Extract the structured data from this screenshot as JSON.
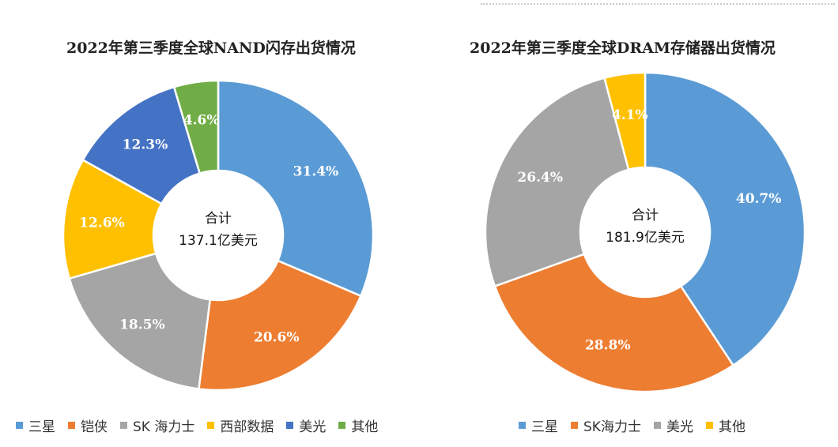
{
  "chart_data": [
    {
      "type": "pie",
      "title": "2022年第三季度全球NAND闪存出货情况",
      "center_label": "合计",
      "center_value": "137.1亿美元",
      "categories": [
        "三星",
        "铠侠",
        "SK 海力士",
        "西部数据",
        "美光",
        "其他"
      ],
      "values": [
        31.4,
        20.6,
        18.5,
        12.6,
        12.3,
        4.6
      ],
      "labels": [
        "31.4%",
        "20.6%",
        "18.5%",
        "12.6%",
        "12.3%",
        "4.6%"
      ],
      "colors": [
        "#5b9bd5",
        "#ed7d31",
        "#a5a5a5",
        "#ffc000",
        "#4472c4",
        "#70ad47"
      ],
      "legend_position": "bottom"
    },
    {
      "type": "pie",
      "title": "2022年第三季度全球DRAM存储器出货情况",
      "center_label": "合计",
      "center_value": "181.9亿美元",
      "categories": [
        "三星",
        "SK海力士",
        "美光",
        "其他"
      ],
      "values": [
        40.7,
        28.8,
        26.4,
        4.1
      ],
      "labels": [
        "40.7%",
        "28.8%",
        "26.4%",
        "4.1%"
      ],
      "colors": [
        "#5b9bd5",
        "#ed7d31",
        "#a5a5a5",
        "#ffc000"
      ],
      "legend_position": "bottom"
    }
  ]
}
